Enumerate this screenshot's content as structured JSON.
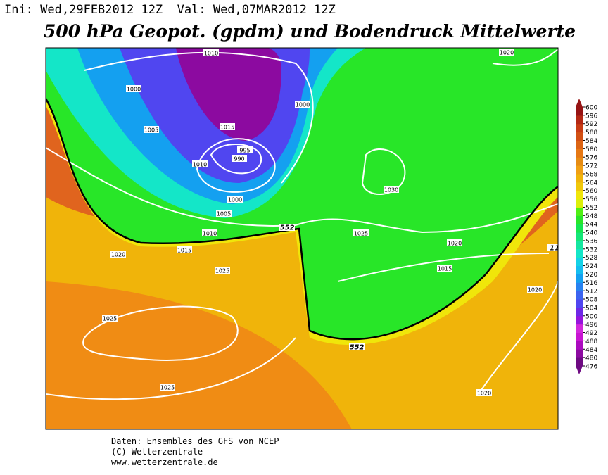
{
  "header": {
    "init": "Ini: Wed,29FEB2012 12Z",
    "valid": "Val: Wed,07MAR2012 12Z"
  },
  "title": "500 hPa Geopot. (gpdm) und Bodendruck Mittelwerte",
  "legend": {
    "levels": [
      476,
      480,
      484,
      488,
      492,
      496,
      500,
      504,
      508,
      512,
      516,
      520,
      524,
      528,
      532,
      536,
      540,
      544,
      548,
      552,
      556,
      560,
      564,
      568,
      572,
      576,
      580,
      584,
      588,
      592,
      596,
      600
    ],
    "colors": [
      "#6e0a82",
      "#8c0aa0",
      "#aa0abe",
      "#c814d2",
      "#d228dc",
      "#9614dc",
      "#6e28e6",
      "#5046f0",
      "#3c64f0",
      "#2882f0",
      "#14a0f0",
      "#14bef0",
      "#14d2e6",
      "#14e6c8",
      "#14e6a0",
      "#14e678",
      "#14e650",
      "#28e628",
      "#50f014",
      "#dcf00a",
      "#f0e60a",
      "#f0c80a",
      "#f0b40a",
      "#f0a014",
      "#e68c14",
      "#e67814",
      "#dc6414",
      "#d25014",
      "#c83c14",
      "#b42814",
      "#961414"
    ]
  },
  "contour_labels": [
    1010,
    1000,
    1005,
    1015,
    995,
    990,
    1010,
    1000,
    1005,
    1010,
    1015,
    552,
    1000,
    1020,
    1030,
    1025,
    1020,
    1015,
    1020,
    1025,
    1025,
    1025,
    552,
    1020,
    1020,
    11
  ],
  "footer": [
    "Daten: Ensembles des GFS von NCEP",
    "(C) Wetterzentrale",
    "www.wetterzentrale.de"
  ]
}
